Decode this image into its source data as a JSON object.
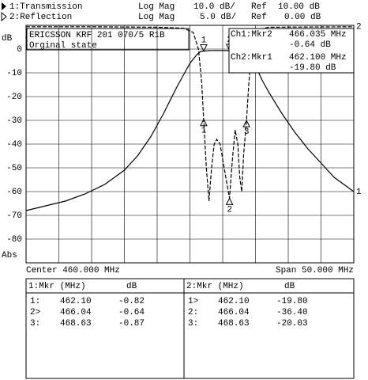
{
  "chart_data": {
    "type": "line",
    "y_label": "dB",
    "y_footer": "Abs",
    "annotation": [
      "ERICSSON KRF 201 070/5 R1B",
      "Orginal state"
    ],
    "center_label": "Center 460.000 MHz",
    "span_label": "Span 50.000 MHz",
    "xlim": [
      435,
      485
    ],
    "ylim": [
      -90,
      10
    ],
    "y2lim": [
      -50,
      0
    ],
    "yticks": [
      0,
      -10,
      -20,
      -30,
      -40,
      -50,
      -60,
      -70,
      -80
    ],
    "grid": true,
    "series": [
      {
        "name": "1:Transmission",
        "end_label": "1",
        "color": "#000000",
        "line_style": "solid",
        "x": [
          435,
          438,
          441,
          444,
          447,
          450,
          452,
          454,
          456,
          458,
          459,
          460,
          461,
          461.6,
          462.1,
          463,
          464,
          465,
          466.04,
          467,
          468,
          468.63,
          469,
          469.5,
          470,
          471,
          472,
          474,
          476,
          478,
          480,
          482,
          485
        ],
        "values": [
          -68,
          -66,
          -64,
          -61,
          -57,
          -51,
          -45,
          -37,
          -27,
          -16,
          -11,
          -6,
          -2.5,
          -1,
          -0.82,
          -0.6,
          -0.6,
          -0.6,
          -0.64,
          -0.7,
          -0.8,
          -0.87,
          -1.5,
          -3.5,
          -7,
          -13,
          -18,
          -27,
          -35,
          -42,
          -48,
          -54,
          -60
        ]
      },
      {
        "name": "2:Reflection",
        "end_label": "2",
        "color": "#000000",
        "line_style": "dashed",
        "axis": "y2",
        "x": [
          435,
          445,
          455,
          459,
          460.5,
          461.3,
          461.8,
          462.1,
          462.5,
          462.9,
          463.3,
          463.7,
          464.1,
          464.6,
          465.1,
          465.6,
          466.04,
          466.5,
          466.9,
          467.3,
          467.6,
          467.9,
          468.2,
          468.63,
          469,
          469.5,
          470,
          472,
          485
        ],
        "values": [
          -0.3,
          -0.3,
          -0.4,
          -0.6,
          -1.5,
          -5,
          -12,
          -19.8,
          -30,
          -37,
          -30,
          -25,
          -24,
          -25,
          -29,
          -33,
          -36.4,
          -28,
          -22,
          -25,
          -32,
          -35,
          -27,
          -20.03,
          -12,
          -4,
          -1,
          -0.4,
          -0.3
        ]
      }
    ],
    "markers": [
      {
        "series": 0,
        "labels": [
          "1",
          "2",
          "3"
        ],
        "x": [
          462.1,
          466.04,
          468.63
        ],
        "values": [
          -0.82,
          -0.64,
          -0.87
        ]
      },
      {
        "series": 1,
        "labels": [
          "1",
          "2",
          "3"
        ],
        "x": [
          462.1,
          466.04,
          468.63
        ],
        "values": [
          -19.8,
          -36.4,
          -20.03
        ]
      }
    ]
  },
  "header": [
    {
      "trace": "1:Transmission",
      "format": "Log Mag",
      "scale": "10.0 dB/",
      "ref": "Ref",
      "ref_value": "10.00 dB"
    },
    {
      "trace": "2:Reflection",
      "format": "Log Mag",
      "scale": "5.0 dB/",
      "ref": "Ref",
      "ref_value": "0.00 dB"
    }
  ],
  "readout": [
    {
      "label": "Ch1:Mkr2",
      "freq": "466.035 MHz",
      "value": "-0.64 dB"
    },
    {
      "label": "Ch2:Mkr1",
      "freq": "462.100 MHz",
      "value": "-19.80 dB"
    }
  ],
  "tables": [
    {
      "head": [
        "1:Mkr (MHz)",
        "dB"
      ],
      "rows": [
        [
          "1:",
          "462.10",
          "-0.82"
        ],
        [
          "2>",
          "466.04",
          "-0.64"
        ],
        [
          "3:",
          "468.63",
          "-0.87"
        ]
      ]
    },
    {
      "head": [
        "2:Mkr (MHz)",
        "dB"
      ],
      "rows": [
        [
          "1>",
          "462.10",
          "-19.80"
        ],
        [
          "2:",
          "466.04",
          "-36.40"
        ],
        [
          "3:",
          "468.63",
          "-20.03"
        ]
      ]
    }
  ]
}
